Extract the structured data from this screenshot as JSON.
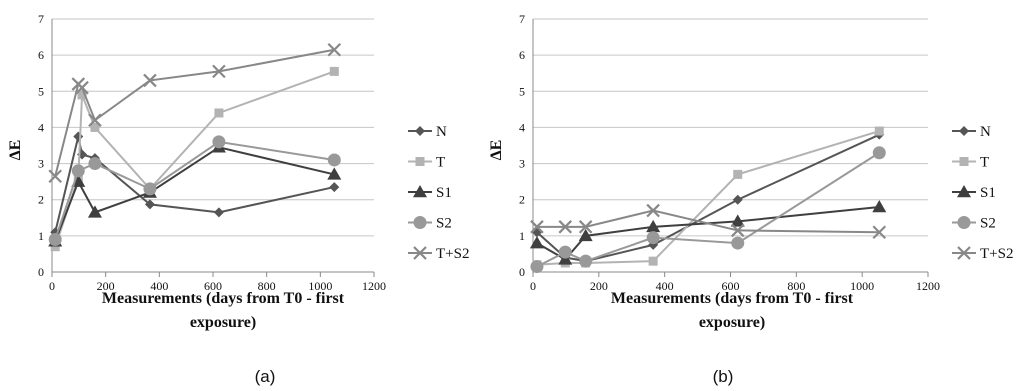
{
  "chart_data": [
    {
      "type": "line",
      "panel_label": "(a)",
      "xlabel_line1": "Measurements (days from T0 - first",
      "xlabel_line2": "exposure)",
      "ylabel": "ΔE",
      "xlim": [
        0,
        1200
      ],
      "ylim": [
        0,
        7
      ],
      "xticks": [
        "0",
        "200",
        "400",
        "600",
        "800",
        "1000",
        "1200"
      ],
      "yticks": [
        "0",
        "1",
        "2",
        "3",
        "4",
        "5",
        "6",
        "7"
      ],
      "grid": "horizontal",
      "legend_position": "right",
      "series": [
        {
          "name": "N",
          "marker": "diamond",
          "color": "#555555",
          "x": [
            12,
            98,
            112,
            160,
            365,
            622,
            1052
          ],
          "y": [
            1.1,
            3.75,
            3.25,
            3.15,
            1.87,
            1.65,
            2.35
          ]
        },
        {
          "name": "T",
          "marker": "square",
          "color": "#b3b3b3",
          "x": [
            12,
            98,
            112,
            160,
            365,
            622,
            1052
          ],
          "y": [
            0.7,
            2.6,
            4.9,
            4.0,
            2.3,
            4.4,
            5.55
          ]
        },
        {
          "name": "S1",
          "marker": "triangle",
          "color": "#3f3f3f",
          "x": [
            12,
            98,
            160,
            365,
            622,
            1052
          ],
          "y": [
            0.85,
            2.5,
            1.65,
            2.2,
            3.45,
            2.7
          ]
        },
        {
          "name": "S2",
          "marker": "circle",
          "color": "#999999",
          "x": [
            12,
            98,
            160,
            365,
            622,
            1052
          ],
          "y": [
            0.9,
            2.8,
            3.0,
            2.3,
            3.6,
            3.1
          ]
        },
        {
          "name": "T+S2",
          "marker": "x",
          "color": "#888888",
          "x": [
            12,
            98,
            112,
            160,
            365,
            622,
            1052
          ],
          "y": [
            2.65,
            5.2,
            5.1,
            4.2,
            5.3,
            5.55,
            6.15
          ]
        }
      ]
    },
    {
      "type": "line",
      "panel_label": "(b)",
      "xlabel_line1": "Measurements (days from T0 - first",
      "xlabel_line2": "exposure)",
      "ylabel": "ΔE",
      "xlim": [
        0,
        1200
      ],
      "ylim": [
        0,
        7
      ],
      "xticks": [
        "0",
        "200",
        "400",
        "600",
        "800",
        "1000",
        "1200"
      ],
      "yticks": [
        "0",
        "1",
        "2",
        "3",
        "4",
        "5",
        "6",
        "7"
      ],
      "grid": "horizontal",
      "legend_position": "right",
      "series": [
        {
          "name": "N",
          "marker": "diamond",
          "color": "#555555",
          "x": [
            12,
            98,
            160,
            365,
            622,
            1052
          ],
          "y": [
            1.1,
            0.4,
            0.3,
            0.75,
            2.0,
            3.8
          ]
        },
        {
          "name": "T",
          "marker": "square",
          "color": "#b3b3b3",
          "x": [
            12,
            98,
            160,
            365,
            622,
            1052
          ],
          "y": [
            0.2,
            0.25,
            0.25,
            0.3,
            2.7,
            3.9
          ]
        },
        {
          "name": "S1",
          "marker": "triangle",
          "color": "#3f3f3f",
          "x": [
            12,
            98,
            160,
            365,
            622,
            1052
          ],
          "y": [
            0.8,
            0.35,
            1.0,
            1.25,
            1.4,
            1.8
          ]
        },
        {
          "name": "S2",
          "marker": "circle",
          "color": "#999999",
          "x": [
            12,
            98,
            160,
            365,
            622,
            1052
          ],
          "y": [
            0.15,
            0.55,
            0.3,
            0.95,
            0.8,
            3.3
          ]
        },
        {
          "name": "T+S2",
          "marker": "x",
          "color": "#888888",
          "x": [
            12,
            98,
            160,
            365,
            622,
            1052
          ],
          "y": [
            1.25,
            1.25,
            1.25,
            1.7,
            1.15,
            1.1
          ]
        }
      ]
    }
  ]
}
